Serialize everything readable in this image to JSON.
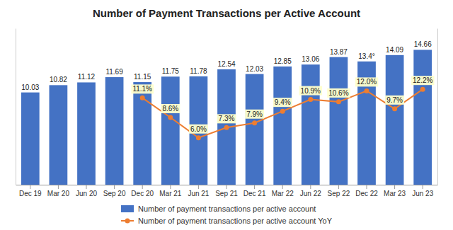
{
  "chart_data": {
    "type": "bar",
    "title": "Number of Payment Transactions per Active Account",
    "categories": [
      "Dec 19",
      "Mar 20",
      "Jun 20",
      "Sep 20",
      "Dec 20",
      "Mar 21",
      "Jun 21",
      "Sep 21",
      "Dec 21",
      "Mar 22",
      "Jun 22",
      "Sep 22",
      "Dec 22",
      "Mar 23",
      "Jun 23"
    ],
    "series": [
      {
        "name": "Number of payment transactions per active account",
        "type": "bar",
        "color": "#4472C4",
        "values": [
          10.03,
          10.82,
          11.12,
          11.69,
          11.15,
          11.75,
          11.78,
          12.54,
          12.03,
          12.85,
          13.06,
          13.87,
          13.4,
          14.09,
          14.66
        ],
        "value_labels": [
          "10.03",
          "10.82",
          "11.12",
          "11.69",
          "11.15",
          "11.75",
          "11.78",
          "12.54",
          "12.03",
          "12.85",
          "13.06",
          "13.87",
          "13.4°",
          "14.09",
          "14.66"
        ]
      },
      {
        "name": "Number of payment transactions per active account YoY",
        "type": "line",
        "axis": "y2",
        "color": "#ED7D31",
        "marker": "circle",
        "values": [
          null,
          null,
          null,
          null,
          11.1,
          8.6,
          6.0,
          7.3,
          7.9,
          9.4,
          10.9,
          10.6,
          12.0,
          9.7,
          12.2
        ],
        "value_labels": [
          null,
          null,
          null,
          null,
          "11.1%",
          "8.6%",
          "6.0%",
          "7.3%",
          "7.9%",
          "9.4%",
          "10.9%",
          "10.6%",
          "12.0%",
          "9.7%",
          "12.2%"
        ]
      }
    ],
    "ylim": [
      0,
      17
    ],
    "y2lim": [
      0,
      20
    ],
    "tick_labels": "x",
    "data_labels": true,
    "legend": "bottom"
  }
}
